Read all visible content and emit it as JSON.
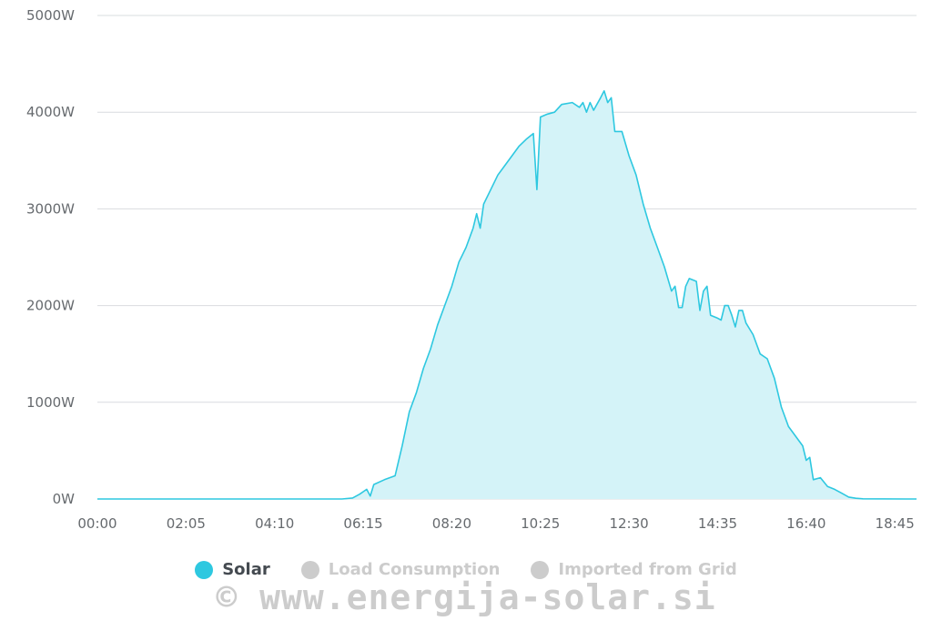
{
  "chart_data": {
    "type": "area",
    "y_unit": "W",
    "ylim": [
      0,
      5000
    ],
    "y_ticks": [
      "0W",
      "1000W",
      "2000W",
      "3000W",
      "4000W",
      "5000W"
    ],
    "x_ticks": [
      "00:00",
      "02:05",
      "04:10",
      "06:15",
      "08:20",
      "10:25",
      "12:30",
      "14:35",
      "16:40",
      "18:45"
    ],
    "grid": true,
    "series": [
      {
        "name": "Solar",
        "color": "#2ec8e0",
        "fill": "#d4f3f8",
        "points": [
          [
            "00:00",
            0
          ],
          [
            "05:45",
            0
          ],
          [
            "06:00",
            10
          ],
          [
            "06:10",
            50
          ],
          [
            "06:20",
            100
          ],
          [
            "06:25",
            30
          ],
          [
            "06:30",
            150
          ],
          [
            "06:45",
            200
          ],
          [
            "07:00",
            240
          ],
          [
            "07:10",
            550
          ],
          [
            "07:20",
            900
          ],
          [
            "07:30",
            1100
          ],
          [
            "07:40",
            1350
          ],
          [
            "07:50",
            1550
          ],
          [
            "08:00",
            1800
          ],
          [
            "08:10",
            2000
          ],
          [
            "08:20",
            2200
          ],
          [
            "08:30",
            2450
          ],
          [
            "08:40",
            2600
          ],
          [
            "08:50",
            2800
          ],
          [
            "08:55",
            2950
          ],
          [
            "09:00",
            2800
          ],
          [
            "09:05",
            3050
          ],
          [
            "09:15",
            3200
          ],
          [
            "09:25",
            3350
          ],
          [
            "09:35",
            3450
          ],
          [
            "09:45",
            3550
          ],
          [
            "09:55",
            3650
          ],
          [
            "10:05",
            3720
          ],
          [
            "10:15",
            3780
          ],
          [
            "10:20",
            3200
          ],
          [
            "10:25",
            3950
          ],
          [
            "10:35",
            3980
          ],
          [
            "10:45",
            4000
          ],
          [
            "10:55",
            4080
          ],
          [
            "11:10",
            4100
          ],
          [
            "11:20",
            4050
          ],
          [
            "11:25",
            4100
          ],
          [
            "11:30",
            4000
          ],
          [
            "11:35",
            4100
          ],
          [
            "11:40",
            4020
          ],
          [
            "11:50",
            4150
          ],
          [
            "11:55",
            4220
          ],
          [
            "12:00",
            4100
          ],
          [
            "12:05",
            4150
          ],
          [
            "12:10",
            3800
          ],
          [
            "12:20",
            3800
          ],
          [
            "12:30",
            3550
          ],
          [
            "12:40",
            3350
          ],
          [
            "12:50",
            3050
          ],
          [
            "13:00",
            2800
          ],
          [
            "13:10",
            2600
          ],
          [
            "13:20",
            2400
          ],
          [
            "13:30",
            2150
          ],
          [
            "13:35",
            2200
          ],
          [
            "13:40",
            1980
          ],
          [
            "13:45",
            1980
          ],
          [
            "13:50",
            2200
          ],
          [
            "13:55",
            2280
          ],
          [
            "14:05",
            2250
          ],
          [
            "14:10",
            1950
          ],
          [
            "14:15",
            2150
          ],
          [
            "14:20",
            2200
          ],
          [
            "14:25",
            1900
          ],
          [
            "14:35",
            1870
          ],
          [
            "14:40",
            1850
          ],
          [
            "14:45",
            2000
          ],
          [
            "14:50",
            2000
          ],
          [
            "14:55",
            1900
          ],
          [
            "15:00",
            1780
          ],
          [
            "15:05",
            1950
          ],
          [
            "15:10",
            1950
          ],
          [
            "15:15",
            1820
          ],
          [
            "15:25",
            1700
          ],
          [
            "15:35",
            1500
          ],
          [
            "15:45",
            1450
          ],
          [
            "15:55",
            1250
          ],
          [
            "16:05",
            950
          ],
          [
            "16:15",
            750
          ],
          [
            "16:25",
            650
          ],
          [
            "16:35",
            550
          ],
          [
            "16:40",
            400
          ],
          [
            "16:45",
            430
          ],
          [
            "16:50",
            200
          ],
          [
            "17:00",
            220
          ],
          [
            "17:10",
            130
          ],
          [
            "17:20",
            100
          ],
          [
            "17:30",
            60
          ],
          [
            "17:40",
            20
          ],
          [
            "17:50",
            8
          ],
          [
            "18:00",
            2
          ],
          [
            "19:00",
            0
          ]
        ]
      }
    ],
    "legend": [
      {
        "label": "Solar",
        "color": "#2ec8e0",
        "text_color": "#444a50",
        "active": true
      },
      {
        "label": "Load Consumption",
        "color": "#cccccc",
        "text_color": "#cccccc",
        "active": false
      },
      {
        "label": "Imported from Grid",
        "color": "#cccccc",
        "text_color": "#cccccc",
        "active": false
      }
    ],
    "legend_position": "bottom-center"
  },
  "watermark": "© www.energija-solar.si"
}
